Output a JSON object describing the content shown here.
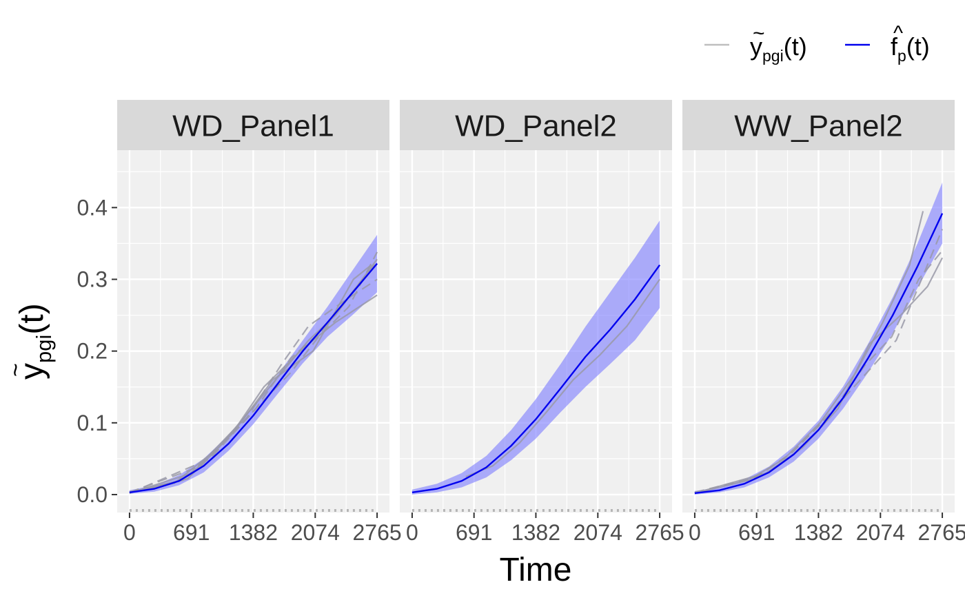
{
  "chart_data": {
    "type": "line",
    "title": "",
    "xlabel": "Time",
    "ylabel": {
      "base": "y",
      "accent": "~",
      "subscript": "pgi",
      "suffix": "(t)"
    },
    "panels": [
      "WD_Panel1",
      "WD_Panel2",
      "WW_Panel2"
    ],
    "x_ticks": [
      0,
      691,
      1382,
      2074,
      2765
    ],
    "x_tick_labels": [
      "0",
      "691",
      "1382",
      "2074",
      "2765"
    ],
    "y_ticks": [
      0.0,
      0.1,
      0.2,
      0.3,
      0.4
    ],
    "y_tick_labels": [
      "0.0",
      "0.1",
      "0.2",
      "0.3",
      "0.4"
    ],
    "xlim": [
      -138,
      2903
    ],
    "ylim": [
      -0.025,
      0.48
    ],
    "grid": true,
    "legend": {
      "placement": "top-right",
      "entries": [
        {
          "base": "y",
          "accent": "~",
          "subscript": "pgi",
          "suffix": "(t)",
          "color": "#bebebe"
        },
        {
          "base": "f",
          "accent": "^",
          "subscript": "p",
          "suffix": "(t)",
          "color": "#0000ee"
        }
      ]
    },
    "colors": {
      "observed": "#bebebe",
      "fit": "#0000ee",
      "band": "#7b7bff",
      "panel_bg": "#f0f0f0",
      "strip_bg": "#d9d9d9",
      "grid": "#ffffff"
    },
    "series": [
      {
        "panel": "WD_Panel1",
        "fit": {
          "x": [
            0,
            276,
            553,
            829,
            1106,
            1382,
            1659,
            1935,
            2212,
            2488,
            2765
          ],
          "y": [
            0.003,
            0.008,
            0.019,
            0.04,
            0.071,
            0.11,
            0.155,
            0.2,
            0.24,
            0.281,
            0.322
          ],
          "lower": [
            0.001,
            0.004,
            0.013,
            0.031,
            0.061,
            0.098,
            0.141,
            0.183,
            0.22,
            0.25,
            0.282
          ],
          "upper": [
            0.006,
            0.013,
            0.027,
            0.05,
            0.083,
            0.122,
            0.168,
            0.215,
            0.262,
            0.312,
            0.362
          ]
        },
        "observed": [
          {
            "x": [
              0,
              500,
              1000,
              1500,
              2000,
              2300,
              2765
            ],
            "y": [
              0.003,
              0.016,
              0.066,
              0.14,
              0.215,
              0.25,
              0.328
            ]
          },
          {
            "x": [
              0,
              600,
              1100,
              1450,
              1800,
              2100,
              2450,
              2765
            ],
            "y": [
              0.004,
              0.02,
              0.08,
              0.125,
              0.17,
              0.218,
              0.262,
              0.338
            ]
          },
          {
            "x": [
              0,
              700,
              1200,
              1500,
              1950,
              2300,
              2765
            ],
            "y": [
              0.002,
              0.03,
              0.095,
              0.15,
              0.205,
              0.24,
              0.278
            ]
          },
          {
            "x": [
              0,
              800,
              1300,
              1700,
              2000,
              2400,
              2765
            ],
            "y": [
              0.003,
              0.04,
              0.105,
              0.182,
              0.235,
              0.27,
              0.3
            ]
          },
          {
            "x": [
              0,
              650,
              1150,
              1600,
              2050,
              2500,
              2700
            ],
            "y": [
              0.003,
              0.022,
              0.085,
              0.16,
              0.2,
              0.3,
              0.32
            ]
          },
          {
            "x": [
              0,
              900,
              1400,
              1800,
              2150,
              2550,
              2765
            ],
            "y": [
              0.002,
              0.05,
              0.118,
              0.19,
              0.228,
              0.292,
              0.325
            ]
          }
        ]
      },
      {
        "panel": "WD_Panel2",
        "fit": {
          "x": [
            0,
            276,
            553,
            829,
            1106,
            1382,
            1659,
            1935,
            2212,
            2488,
            2765
          ],
          "y": [
            0.003,
            0.008,
            0.019,
            0.038,
            0.068,
            0.105,
            0.148,
            0.192,
            0.23,
            0.272,
            0.32
          ],
          "lower": [
            0.0,
            0.003,
            0.01,
            0.024,
            0.048,
            0.078,
            0.115,
            0.15,
            0.182,
            0.215,
            0.26
          ],
          "upper": [
            0.007,
            0.015,
            0.03,
            0.054,
            0.09,
            0.133,
            0.182,
            0.234,
            0.282,
            0.33,
            0.382
          ]
        },
        "observed": [
          {
            "x": [
              600,
              900,
              1200,
              1500,
              1800,
              2100,
              2400,
              2765
            ],
            "y": [
              0.025,
              0.04,
              0.072,
              0.115,
              0.16,
              0.195,
              0.235,
              0.3
            ]
          }
        ]
      },
      {
        "panel": "WW_Panel2",
        "fit": {
          "x": [
            0,
            276,
            553,
            829,
            1106,
            1382,
            1659,
            1935,
            2212,
            2488,
            2765
          ],
          "y": [
            0.002,
            0.006,
            0.015,
            0.031,
            0.056,
            0.09,
            0.135,
            0.19,
            0.25,
            0.318,
            0.392
          ],
          "lower": [
            0.0,
            0.003,
            0.01,
            0.024,
            0.046,
            0.078,
            0.12,
            0.17,
            0.225,
            0.288,
            0.35
          ],
          "upper": [
            0.005,
            0.01,
            0.021,
            0.039,
            0.067,
            0.103,
            0.151,
            0.21,
            0.275,
            0.35,
            0.435
          ]
        },
        "observed": [
          {
            "x": [
              0,
              600,
              1000,
              1400,
              1800,
              2100,
              2400,
              2550
            ],
            "y": [
              0.002,
              0.02,
              0.05,
              0.1,
              0.17,
              0.24,
              0.32,
              0.395
            ]
          },
          {
            "x": [
              0,
              700,
              1100,
              1500,
              1900,
              2200,
              2500,
              2765
            ],
            "y": [
              0.003,
              0.025,
              0.06,
              0.11,
              0.18,
              0.22,
              0.3,
              0.34
            ]
          },
          {
            "x": [
              0,
              800,
              1200,
              1600,
              1950,
              2300,
              2600,
              2765
            ],
            "y": [
              0.002,
              0.03,
              0.065,
              0.12,
              0.21,
              0.25,
              0.29,
              0.33
            ]
          },
          {
            "x": [
              0,
              650,
              1050,
              1450,
              1850,
              2250,
              2765
            ],
            "y": [
              0.003,
              0.022,
              0.055,
              0.105,
              0.16,
              0.215,
              0.37
            ]
          }
        ]
      }
    ]
  }
}
